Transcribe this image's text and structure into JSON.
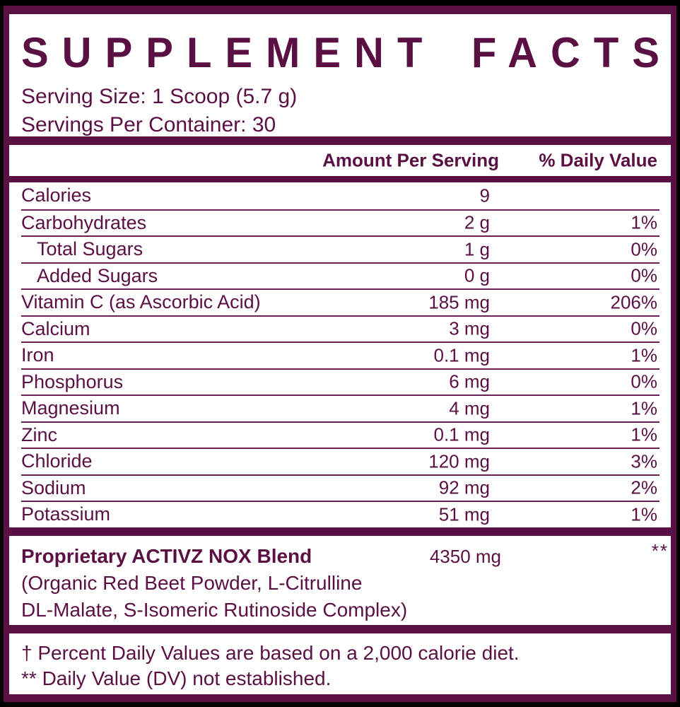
{
  "colors": {
    "brand_maroon": "#5b1043",
    "hairline": "#6b2156",
    "panel_background": "#ffffff",
    "outside_background": "#000000"
  },
  "title": {
    "word1": "SUPPLEMENT",
    "word2": "FACTS"
  },
  "serving": {
    "size_line": "Serving Size: 1 Scoop (5.7 g)",
    "per_container_line": "Servings Per Container: 30"
  },
  "table": {
    "headers": {
      "amount": "Amount Per Serving",
      "daily_value": "% Daily Value"
    },
    "rows": [
      {
        "name": "Calories",
        "amount": "9",
        "dv": ""
      },
      {
        "name": "Carbohydrates",
        "amount": "2 g",
        "dv": "1%"
      },
      {
        "name": "Total Sugars",
        "amount": "1 g",
        "dv": "0%"
      },
      {
        "name": "Added Sugars",
        "amount": "0 g",
        "dv": "0%"
      },
      {
        "name": "Vitamin C (as Ascorbic Acid)",
        "amount": "185 mg",
        "dv": "206%"
      },
      {
        "name": "Calcium",
        "amount": "3 mg",
        "dv": "0%"
      },
      {
        "name": "Iron",
        "amount": "0.1 mg",
        "dv": "1%"
      },
      {
        "name": "Phosphorus",
        "amount": "6 mg",
        "dv": "0%"
      },
      {
        "name": "Magnesium",
        "amount": "4 mg",
        "dv": "1%"
      },
      {
        "name": "Zinc",
        "amount": "0.1 mg",
        "dv": "1%"
      },
      {
        "name": "Chloride",
        "amount": "120 mg",
        "dv": "3%"
      },
      {
        "name": "Sodium",
        "amount": "92 mg",
        "dv": "2%"
      },
      {
        "name": "Potassium",
        "amount": "51 mg",
        "dv": "1%"
      }
    ]
  },
  "proprietary": {
    "name": "Proprietary ACTIVZ NOX Blend",
    "amount": "4350 mg",
    "dv": "**",
    "description_line1": "(Organic Red Beet Powder, L-Citrulline",
    "description_line2": "DL-Malate, S-Isomeric Rutinoside Complex)"
  },
  "footnotes": {
    "line1": "† Percent Daily Values are based on a 2,000 calorie diet.",
    "line2": "** Daily Value (DV) not established."
  }
}
